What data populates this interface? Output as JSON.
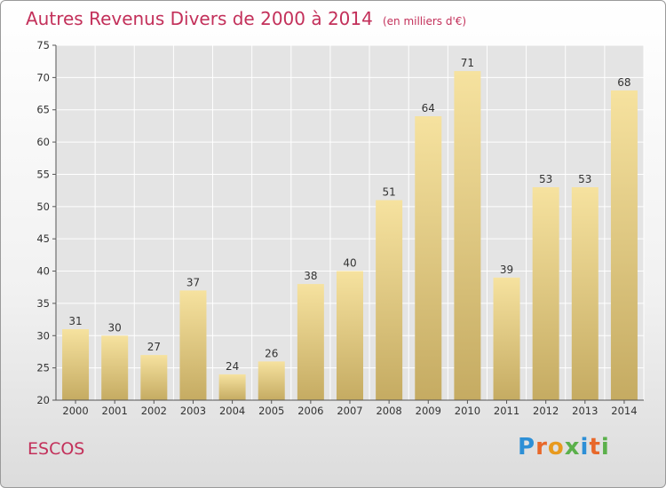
{
  "header": {
    "title": "Autres Revenus Divers de 2000 à 2014",
    "subtitle": "(en milliers d'€)"
  },
  "footer": {
    "location": "ESCOS",
    "logo_text": "Proxiti",
    "logo_icon": "proxiti-logo"
  },
  "colors": {
    "title": "#c3305a",
    "bar_top": "#f6e29f",
    "bar_bottom": "#c5ab62",
    "plot_bg": "#e4e4e4",
    "grid": "#ffffff"
  },
  "chart_data": {
    "type": "bar",
    "title": "Autres Revenus Divers de 2000 à 2014",
    "subtitle": "(en milliers d'€)",
    "xlabel": "",
    "ylabel": "",
    "categories": [
      "2000",
      "2001",
      "2002",
      "2003",
      "2004",
      "2005",
      "2006",
      "2007",
      "2008",
      "2009",
      "2010",
      "2011",
      "2012",
      "2013",
      "2014"
    ],
    "values": [
      31,
      30,
      27,
      37,
      24,
      26,
      38,
      40,
      51,
      64,
      71,
      39,
      53,
      53,
      68
    ],
    "ylim": [
      20,
      75
    ],
    "yticks": [
      20,
      25,
      30,
      35,
      40,
      45,
      50,
      55,
      60,
      65,
      70,
      75
    ],
    "grid": true,
    "data_labels": true,
    "legend": "none"
  }
}
